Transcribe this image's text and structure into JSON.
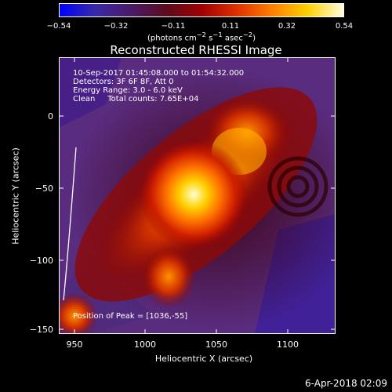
{
  "colorbar": {
    "ticks": [
      "−0.54",
      "−0.32",
      "−0.11",
      "0.11",
      "0.32",
      "0.54"
    ],
    "unit_prefix": "(photons cm",
    "unit_exp1": "−2",
    "unit_mid": " s",
    "unit_exp2": "−1",
    "unit_mid2": " asec",
    "unit_exp3": "−2",
    "unit_suffix": ")",
    "colors": [
      "#0000ff",
      "#3a2aa8",
      "#4b1a6a",
      "#5a0c1e",
      "#a00000",
      "#e03000",
      "#ff8000",
      "#ffd000",
      "#ffffe0"
    ]
  },
  "title": "Reconstructed RHESSI Image",
  "info_lines": [
    "10-Sep-2017 01:45:08.000 to 01:54:32.000",
    "Detectors: 3F 6F 8F, Att 0",
    "Energy Range: 3.0 - 6.0 keV",
    "Clean     Total counts: 7.65E+04"
  ],
  "peak_label": "Position of Peak = [1036,-55]",
  "axes": {
    "xlabel": "Heliocentric X (arcsec)",
    "ylabel": "Heliocentric Y (arcsec)",
    "xticks": [
      "950",
      "1000",
      "1050",
      "1100"
    ],
    "yticks": [
      "0",
      "−50",
      "−100",
      "−150"
    ]
  },
  "chart_data": {
    "type": "heatmap",
    "xlim": [
      940,
      1135
    ],
    "ylim": [
      -152,
      42
    ],
    "xticks": [
      950,
      1000,
      1050,
      1100
    ],
    "yticks": [
      0,
      -50,
      -100,
      -150
    ],
    "peak": [
      1036,
      -55
    ],
    "colorbar_range": [
      -0.54,
      0.54
    ]
  },
  "timestamp": "6-Apr-2018 02:09"
}
